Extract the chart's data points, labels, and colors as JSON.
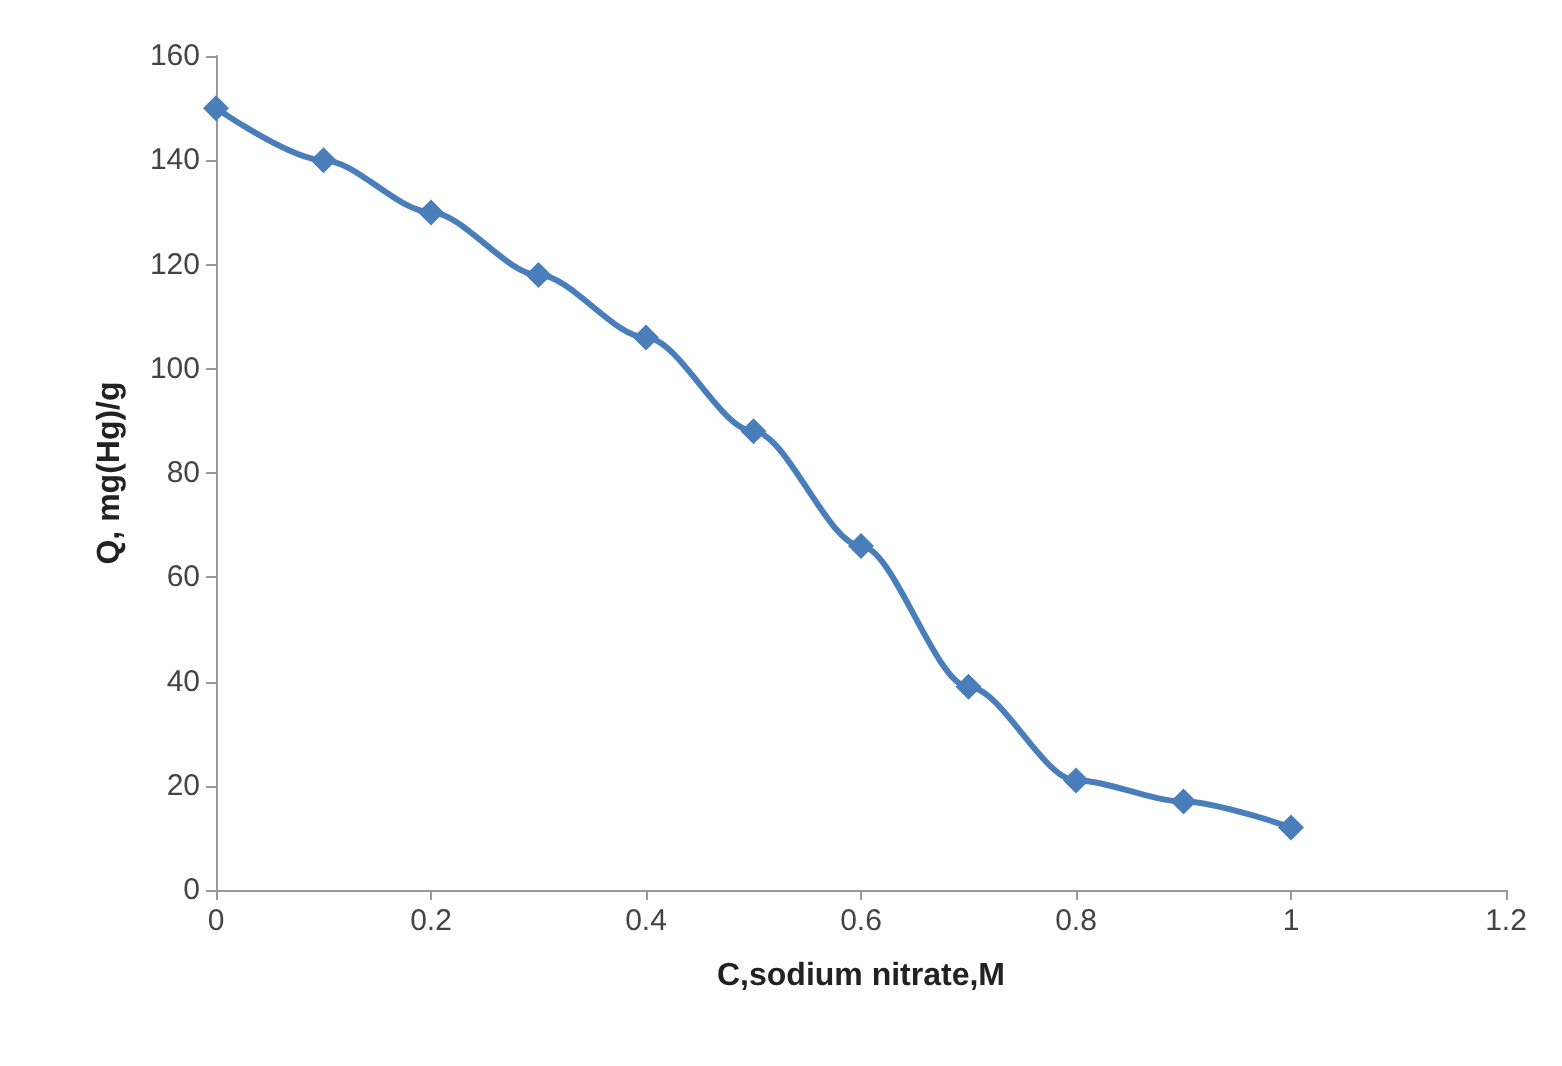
{
  "chart_data": {
    "type": "line",
    "xlabel": "C,sodium nitrate,M",
    "ylabel": "Q, mg(Hg)/g",
    "x": [
      0,
      0.1,
      0.2,
      0.3,
      0.4,
      0.5,
      0.6,
      0.7,
      0.8,
      0.9,
      1
    ],
    "series": [
      {
        "color": "#4a7ebb",
        "values": [
          150,
          140,
          130,
          118,
          106,
          88,
          66,
          39,
          21,
          17,
          12
        ]
      }
    ],
    "xlim": [
      0,
      1.2
    ],
    "xticks": [
      0,
      0.2,
      0.4,
      0.6,
      0.8,
      1,
      1.2
    ],
    "ylim": [
      0,
      160
    ],
    "yticks": [
      0,
      20,
      40,
      60,
      80,
      100,
      120,
      140,
      160
    ],
    "grid": false,
    "marker": "diamond",
    "line_style": "solid"
  }
}
